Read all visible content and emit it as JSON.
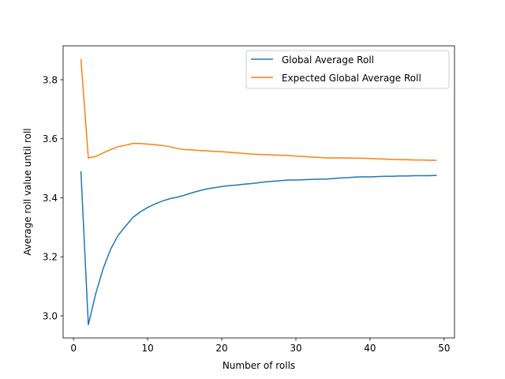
{
  "chart_data": {
    "type": "line",
    "title": "",
    "xlabel": "Number of rolls",
    "ylabel": "Average roll value until roll",
    "xlim": [
      -1.4,
      51.4
    ],
    "ylim": [
      2.925,
      3.915
    ],
    "xticks": [
      0,
      10,
      20,
      30,
      40,
      50
    ],
    "xtick_labels": [
      "0",
      "10",
      "20",
      "30",
      "40",
      "50"
    ],
    "yticks": [
      3.0,
      3.2,
      3.4,
      3.6,
      3.8
    ],
    "ytick_labels": [
      "3.0",
      "3.2",
      "3.4",
      "3.6",
      "3.8"
    ],
    "grid": false,
    "legend_position": "top-right",
    "x": [
      1,
      2,
      3,
      4,
      5,
      6,
      7,
      8,
      9,
      10,
      11,
      12,
      13,
      14,
      15,
      16,
      17,
      18,
      19,
      20,
      21,
      22,
      23,
      24,
      25,
      26,
      27,
      28,
      29,
      30,
      31,
      32,
      33,
      34,
      35,
      36,
      37,
      38,
      39,
      40,
      41,
      42,
      43,
      44,
      45,
      46,
      47,
      48,
      49
    ],
    "series": [
      {
        "name": "Global Average Roll",
        "color": "#1f77b4",
        "values": [
          3.49,
          2.97,
          3.075,
          3.16,
          3.225,
          3.272,
          3.303,
          3.333,
          3.352,
          3.367,
          3.379,
          3.389,
          3.397,
          3.402,
          3.409,
          3.417,
          3.424,
          3.43,
          3.434,
          3.438,
          3.441,
          3.443,
          3.446,
          3.448,
          3.451,
          3.454,
          3.456,
          3.458,
          3.46,
          3.46,
          3.461,
          3.462,
          3.463,
          3.463,
          3.465,
          3.467,
          3.468,
          3.47,
          3.471,
          3.471,
          3.472,
          3.473,
          3.473,
          3.474,
          3.474,
          3.475,
          3.475,
          3.475,
          3.476
        ]
      },
      {
        "name": "Expected Global Average Roll",
        "color": "#ff7f0e",
        "values": [
          3.87,
          3.535,
          3.54,
          3.552,
          3.563,
          3.573,
          3.578,
          3.584,
          3.584,
          3.582,
          3.58,
          3.577,
          3.573,
          3.567,
          3.563,
          3.562,
          3.56,
          3.559,
          3.557,
          3.556,
          3.554,
          3.552,
          3.55,
          3.548,
          3.547,
          3.546,
          3.545,
          3.544,
          3.543,
          3.541,
          3.54,
          3.538,
          3.537,
          3.535,
          3.535,
          3.535,
          3.535,
          3.534,
          3.534,
          3.533,
          3.532,
          3.531,
          3.53,
          3.529,
          3.529,
          3.528,
          3.528,
          3.527,
          3.527
        ]
      }
    ]
  }
}
